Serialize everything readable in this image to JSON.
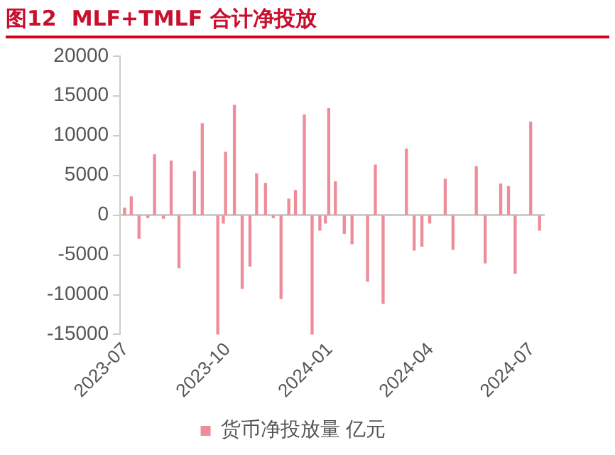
{
  "chart_data": {
    "type": "bar",
    "title": "图12  MLF+TMLF 合计净投放",
    "x": [
      "2023-06-30",
      "2023-07-06",
      "2023-07-13",
      "2023-07-21",
      "2023-07-27",
      "2023-08-04",
      "2023-08-11",
      "2023-08-18",
      "2023-09-01",
      "2023-09-08",
      "2023-09-22",
      "2023-09-27",
      "2023-09-29",
      "2023-10-07",
      "2023-10-14",
      "2023-10-21",
      "2023-10-27",
      "2023-11-04",
      "2023-11-11",
      "2023-11-18",
      "2023-11-25",
      "2023-12-01",
      "2023-12-09",
      "2023-12-16",
      "2023-12-23",
      "2023-12-28",
      "2023-12-31",
      "2024-01-06",
      "2024-01-14",
      "2024-01-21",
      "2024-02-04",
      "2024-02-11",
      "2024-02-18",
      "2024-03-10",
      "2024-03-17",
      "2024-03-24",
      "2024-03-31",
      "2024-04-14",
      "2024-04-21",
      "2024-05-12",
      "2024-05-20",
      "2024-06-03",
      "2024-06-10",
      "2024-06-16",
      "2024-06-30",
      "2024-07-08"
    ],
    "series": [
      {
        "name": "货币净投放量 亿元",
        "color": "#ee8d99",
        "values": [
          900,
          2300,
          -2900,
          -300,
          7600,
          -400,
          6800,
          -6600,
          5500,
          11500,
          -15000,
          -1000,
          7900,
          13800,
          -9200,
          -6400,
          5200,
          4000,
          -300,
          -10500,
          2000,
          3100,
          12600,
          -15000,
          -1900,
          -1000,
          13400,
          4200,
          -2300,
          -3600,
          -8300,
          6300,
          -11100,
          8300,
          -4400,
          -3900,
          -1000,
          4500,
          -4300,
          6100,
          -6000,
          3900,
          3600,
          -7300,
          11700,
          -1900
        ]
      }
    ],
    "xlim": [
      "2023-06-26",
      "2024-07-12"
    ],
    "xticks": [
      "2023-07",
      "2023-10",
      "2024-01",
      "2024-04",
      "2024-07"
    ],
    "ylim": [
      -15000,
      20000
    ],
    "yticks": [
      -15000,
      -10000,
      -5000,
      0,
      5000,
      10000,
      15000,
      20000
    ],
    "legend": "bottom"
  }
}
